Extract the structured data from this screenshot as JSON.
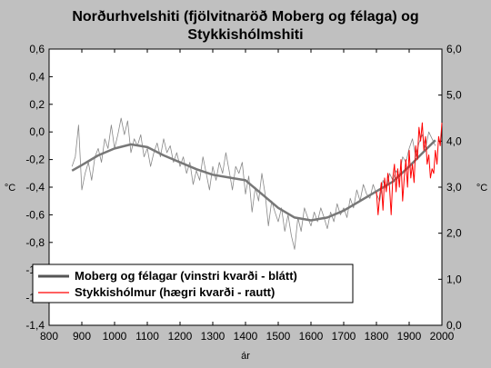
{
  "chart_data": {
    "type": "line",
    "title_line1": "Norðurhvelshiti (fjölvitnaröð Moberg og félaga) og",
    "title_line2": "Stykkishólmshiti",
    "xlabel": "ár",
    "ylabel_left": "°C",
    "ylabel_right": "°C",
    "xlim": [
      800,
      2000
    ],
    "ylim_left": [
      -1.4,
      0.6
    ],
    "ylim_right": [
      0.0,
      6.0
    ],
    "x_ticks": [
      "800",
      "900",
      "1000",
      "1100",
      "1200",
      "1300",
      "1400",
      "1500",
      "1600",
      "1700",
      "1800",
      "1900",
      "2000"
    ],
    "y_left_ticks": [
      "0,6",
      "0,4",
      "0,2",
      "0,0",
      "-0,2",
      "-0,4",
      "-0,6",
      "-0,8",
      "-1,0",
      "-1,2",
      "-1,4"
    ],
    "y_right_ticks": [
      "6,0",
      "5,0",
      "4,0",
      "3,0",
      "2,0",
      "1,0",
      "0,0"
    ],
    "grid": false,
    "legend_position": "bottom-left",
    "legend": [
      {
        "label": "Moberg og félagar (vinstri kvarði - blátt)",
        "color": "#555555"
      },
      {
        "label": "Stykkishólmur (hægri kvarði - rautt)",
        "color": "#ff0000"
      }
    ],
    "series": [
      {
        "name": "Moberg og félagar (vinstri kvarði - blátt)",
        "axis": "left",
        "color": "#888888",
        "x": [
          870,
          880,
          890,
          900,
          910,
          920,
          930,
          940,
          950,
          960,
          970,
          980,
          990,
          1000,
          1010,
          1020,
          1030,
          1040,
          1050,
          1060,
          1070,
          1080,
          1090,
          1100,
          1110,
          1120,
          1130,
          1140,
          1150,
          1160,
          1170,
          1180,
          1190,
          1200,
          1210,
          1220,
          1230,
          1240,
          1250,
          1260,
          1270,
          1280,
          1290,
          1300,
          1310,
          1320,
          1330,
          1340,
          1350,
          1360,
          1370,
          1380,
          1390,
          1400,
          1410,
          1420,
          1430,
          1440,
          1450,
          1460,
          1470,
          1480,
          1490,
          1500,
          1510,
          1520,
          1530,
          1540,
          1550,
          1560,
          1570,
          1580,
          1590,
          1600,
          1610,
          1620,
          1630,
          1640,
          1650,
          1660,
          1670,
          1680,
          1690,
          1700,
          1710,
          1720,
          1730,
          1740,
          1750,
          1760,
          1770,
          1780,
          1790,
          1800,
          1810,
          1820,
          1830,
          1840,
          1850,
          1860,
          1870,
          1880,
          1890,
          1900,
          1910,
          1920,
          1930,
          1940,
          1950,
          1960,
          1970,
          1980
        ],
        "values": [
          -0.25,
          -0.18,
          0.05,
          -0.42,
          -0.3,
          -0.22,
          -0.35,
          -0.18,
          -0.12,
          -0.22,
          -0.05,
          -0.12,
          0.05,
          -0.12,
          -0.02,
          0.1,
          -0.02,
          0.08,
          -0.15,
          -0.05,
          -0.1,
          -0.02,
          -0.18,
          -0.12,
          -0.25,
          -0.15,
          -0.08,
          -0.18,
          -0.05,
          -0.15,
          -0.1,
          -0.22,
          -0.15,
          -0.25,
          -0.18,
          -0.3,
          -0.22,
          -0.38,
          -0.28,
          -0.35,
          -0.18,
          -0.3,
          -0.42,
          -0.25,
          -0.35,
          -0.22,
          -0.3,
          -0.15,
          -0.28,
          -0.42,
          -0.25,
          -0.3,
          -0.22,
          -0.45,
          -0.32,
          -0.58,
          -0.4,
          -0.5,
          -0.3,
          -0.45,
          -0.68,
          -0.5,
          -0.58,
          -0.65,
          -0.55,
          -0.72,
          -0.6,
          -0.75,
          -0.85,
          -0.62,
          -0.72,
          -0.55,
          -0.62,
          -0.68,
          -0.58,
          -0.65,
          -0.55,
          -0.62,
          -0.7,
          -0.58,
          -0.65,
          -0.52,
          -0.6,
          -0.55,
          -0.62,
          -0.48,
          -0.55,
          -0.42,
          -0.5,
          -0.38,
          -0.45,
          -0.48,
          -0.38,
          -0.45,
          -0.5,
          -0.35,
          -0.42,
          -0.3,
          -0.35,
          -0.28,
          -0.32,
          -0.18,
          -0.22,
          -0.12,
          -0.05,
          -0.18,
          -0.08,
          -0.02,
          -0.12,
          0.0,
          -0.05,
          -0.1
        ]
      },
      {
        "name": "Moberg og félagar (vinstri kvarði - blátt)",
        "axis": "left",
        "color": "#777777",
        "smoothed": true,
        "x": [
          870,
          900,
          950,
          1000,
          1050,
          1100,
          1150,
          1200,
          1250,
          1300,
          1350,
          1400,
          1450,
          1500,
          1550,
          1600,
          1650,
          1700,
          1750,
          1800,
          1850,
          1900,
          1950,
          1980
        ],
        "values": [
          -0.28,
          -0.24,
          -0.17,
          -0.12,
          -0.09,
          -0.11,
          -0.17,
          -0.22,
          -0.27,
          -0.31,
          -0.33,
          -0.35,
          -0.45,
          -0.55,
          -0.62,
          -0.64,
          -0.62,
          -0.57,
          -0.5,
          -0.43,
          -0.36,
          -0.25,
          -0.13,
          -0.06
        ]
      },
      {
        "name": "Stykkishólmur (hægri kvarði - rautt)",
        "axis": "right",
        "color": "#ff0000",
        "x": [
          1800,
          1805,
          1810,
          1815,
          1820,
          1825,
          1830,
          1835,
          1840,
          1845,
          1850,
          1855,
          1860,
          1865,
          1870,
          1875,
          1880,
          1885,
          1890,
          1895,
          1900,
          1905,
          1910,
          1915,
          1920,
          1925,
          1930,
          1935,
          1940,
          1945,
          1950,
          1955,
          1960,
          1965,
          1970,
          1975,
          1980,
          1985,
          1990,
          1995,
          2000
        ],
        "values": [
          2.9,
          2.4,
          2.8,
          3.1,
          2.5,
          3.2,
          2.9,
          3.3,
          3.0,
          2.4,
          3.2,
          3.5,
          2.9,
          3.4,
          3.0,
          3.6,
          2.7,
          3.2,
          3.6,
          3.0,
          3.8,
          3.2,
          3.5,
          3.1,
          3.9,
          3.6,
          4.3,
          4.0,
          4.4,
          3.8,
          4.1,
          3.5,
          3.7,
          3.2,
          3.4,
          3.3,
          3.8,
          3.5,
          4.1,
          3.9,
          4.4
        ]
      }
    ]
  }
}
